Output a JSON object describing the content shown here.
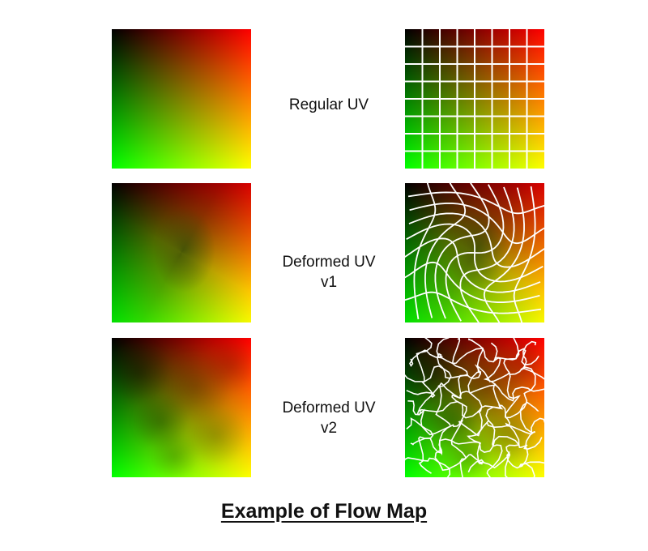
{
  "rows": [
    {
      "label_line1": "Regular UV",
      "label_line2": ""
    },
    {
      "label_line1": "Deformed UV",
      "label_line2": "v1"
    },
    {
      "label_line1": "Deformed UV",
      "label_line2": "v2"
    }
  ],
  "caption": "Example of Flow Map",
  "colors": {
    "u_axis": "#ff0000",
    "v_axis": "#00ff00",
    "origin": "#000000",
    "far_corner": "#ffff00",
    "grid_lines": "#ffffff"
  }
}
